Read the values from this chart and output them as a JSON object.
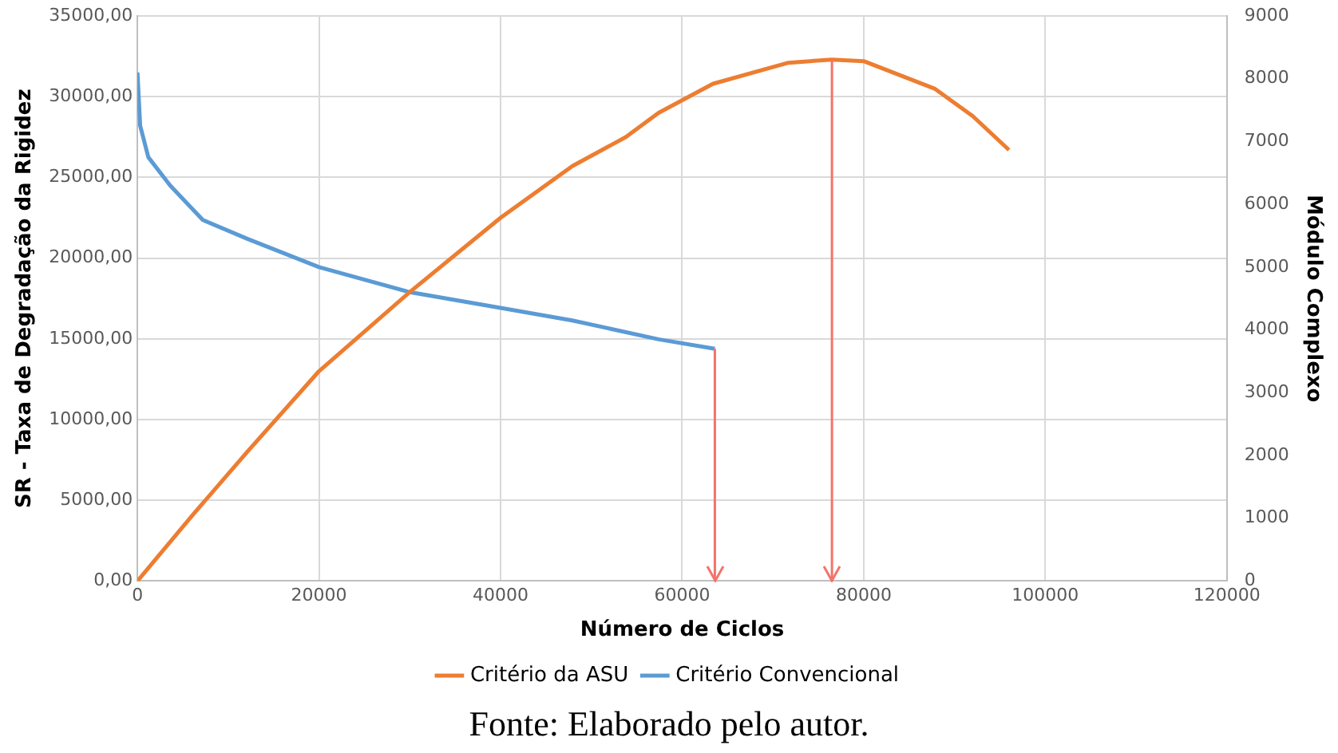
{
  "chart_data": {
    "type": "line",
    "xlabel": "Número de Ciclos",
    "ylabel": "SR - Taxa de Degradação da Rigidez",
    "y2label": "Módulo Complexo",
    "xlim": [
      0,
      120000
    ],
    "xticks": [
      0,
      20000,
      40000,
      60000,
      80000,
      100000,
      120000
    ],
    "ylim": [
      0,
      35000
    ],
    "yticks": [
      {
        "value": 0,
        "label": "0,00"
      },
      {
        "value": 5000,
        "label": "5000,00"
      },
      {
        "value": 10000,
        "label": "10000,00"
      },
      {
        "value": 15000,
        "label": "15000,00"
      },
      {
        "value": 20000,
        "label": "20000,00"
      },
      {
        "value": 25000,
        "label": "25000,00"
      },
      {
        "value": 30000,
        "label": "30000,00"
      },
      {
        "value": 35000,
        "label": "35000,00"
      }
    ],
    "y2lim": [
      0,
      9000
    ],
    "y2ticks": [
      0,
      1000,
      2000,
      3000,
      4000,
      5000,
      6000,
      7000,
      8000,
      9000
    ],
    "series": [
      {
        "name": "Critério da ASU",
        "color": "#ed7d31",
        "x": [
          0,
          6100,
          12100,
          20000,
          30000,
          40000,
          47900,
          53800,
          57400,
          63400,
          71700,
          76500,
          80000,
          87800,
          92000,
          96000
        ],
        "values": [
          0,
          4100,
          8000,
          13000,
          17900,
          22500,
          25700,
          27500,
          29000,
          30800,
          32100,
          32300,
          32200,
          30500,
          28800,
          26700
        ]
      },
      {
        "name": "Critério Convencional",
        "color": "#5b9bd5",
        "axis": "y2",
        "x": [
          0,
          300,
          1200,
          3600,
          7200,
          12100,
          20000,
          30000,
          40000,
          47900,
          57400,
          63600
        ],
        "values": [
          8100,
          7250,
          6750,
          6300,
          5750,
          5450,
          5000,
          4600,
          4350,
          4150,
          3850,
          3700
        ]
      }
    ],
    "ref_lines": [
      {
        "axis": "x",
        "value": 63600,
        "color": "#f4736b"
      },
      {
        "axis": "x",
        "value": 76500,
        "color": "#f4736b"
      }
    ],
    "grid": true,
    "legend": "bottom",
    "marker": "none",
    "line_style": "solid",
    "annotations": [
      "Fonte: Elaborado pelo autor."
    ]
  }
}
